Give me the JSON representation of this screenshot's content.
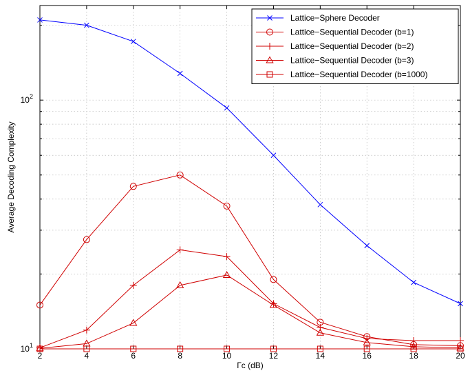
{
  "chart_data": {
    "type": "line",
    "title": "",
    "xlabel": "Γc (dB)",
    "ylabel": "Average Decoding Complexity",
    "yscale": "log",
    "xlim": [
      2,
      20
    ],
    "ylim": [
      10,
      240
    ],
    "x": [
      2,
      4,
      6,
      8,
      10,
      12,
      14,
      16,
      18,
      20
    ],
    "x_tick_labels": [
      "2",
      "4",
      "6",
      "8",
      "10",
      "12",
      "14",
      "16",
      "18",
      "20"
    ],
    "grid": true,
    "legend_position": "top-right",
    "series": [
      {
        "name": "Lattice−Sphere Decoder",
        "color": "#0000ff",
        "marker": "x",
        "values": [
          210,
          200,
          172,
          128,
          93,
          60,
          38,
          26,
          18.5,
          15.2
        ]
      },
      {
        "name": "Lattice−Sequential Decoder (b=1)",
        "color": "#d00000",
        "marker": "circle",
        "values": [
          15.0,
          27.5,
          45.0,
          50.0,
          37.5,
          19.0,
          12.8,
          11.2,
          10.4,
          10.3
        ]
      },
      {
        "name": "Lattice−Sequential Decoder (b=2)",
        "color": "#d00000",
        "marker": "plus",
        "values": [
          10.1,
          11.9,
          18.0,
          25.0,
          23.5,
          15.2,
          12.2,
          11.0,
          10.8,
          10.8
        ]
      },
      {
        "name": "Lattice−Sequential Decoder (b=3)",
        "color": "#d00000",
        "marker": "triangle",
        "values": [
          10.05,
          10.5,
          12.7,
          18.0,
          19.8,
          15.0,
          11.6,
          10.6,
          10.2,
          10.1
        ]
      },
      {
        "name": "Lattice−Sequential Decoder (b=1000)",
        "color": "#d00000",
        "marker": "square",
        "values": [
          10.0,
          10.0,
          10.0,
          10.0,
          10.0,
          10.0,
          10.0,
          10.0,
          10.0,
          10.0
        ]
      }
    ],
    "y_tick_labels": [
      {
        "value": 10,
        "base": "10",
        "exp": "1"
      },
      {
        "value": 100,
        "base": "10",
        "exp": "2"
      }
    ]
  }
}
